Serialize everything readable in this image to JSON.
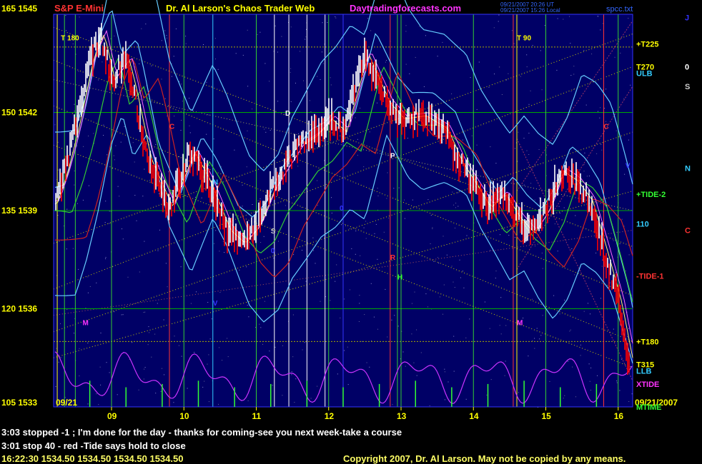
{
  "header": {
    "symbol": "S&P E-Mini",
    "title": "Dr. Al Larson's Chaos Trader Web",
    "site": "Daytradingforecasts.com",
    "stamp1": "09/21/2007 20:26 UT",
    "stamp2": "09/21/2007 15:26 Local",
    "file": "spcc.txt"
  },
  "colors": {
    "background": "#000000",
    "plot_bg": "#000066",
    "price_up": "#ffffff",
    "price_down": "#ff0000",
    "grid_green": "#00cc00",
    "accent_yellow": "#ffff00",
    "magenta": "#ff33ff",
    "cyan": "#33ccff"
  },
  "chart_data": {
    "type": "line",
    "title": "S&P E-Mini",
    "x_ticks": [
      "09",
      "10",
      "11",
      "12",
      "13",
      "14",
      "15",
      "16"
    ],
    "y_ticks": [
      {
        "label": "165 1545",
        "price": 1545
      },
      {
        "label": "150 1542",
        "price": 1542
      },
      {
        "label": "135 1539",
        "price": 1539
      },
      {
        "label": "120 1536",
        "price": 1536
      },
      {
        "label": "105 1533",
        "price": 1533
      }
    ],
    "ylim": [
      1533,
      1545
    ],
    "xlim": [
      8.2,
      16.2
    ],
    "date_start": "09/21",
    "date_end": "09/21/2007",
    "price_series": [
      {
        "x": 8.2,
        "y": 1539.2
      },
      {
        "x": 8.35,
        "y": 1540.2
      },
      {
        "x": 8.5,
        "y": 1541.5
      },
      {
        "x": 8.7,
        "y": 1543.6
      },
      {
        "x": 8.85,
        "y": 1544.4
      },
      {
        "x": 9.0,
        "y": 1543.0
      },
      {
        "x": 9.2,
        "y": 1543.6
      },
      {
        "x": 9.3,
        "y": 1542.7
      },
      {
        "x": 9.5,
        "y": 1540.6
      },
      {
        "x": 9.8,
        "y": 1539.1
      },
      {
        "x": 10.1,
        "y": 1540.8
      },
      {
        "x": 10.3,
        "y": 1540.0
      },
      {
        "x": 10.6,
        "y": 1538.4
      },
      {
        "x": 10.8,
        "y": 1538.0
      },
      {
        "x": 11.0,
        "y": 1538.5
      },
      {
        "x": 11.2,
        "y": 1539.6
      },
      {
        "x": 11.4,
        "y": 1540.3
      },
      {
        "x": 11.6,
        "y": 1541.0
      },
      {
        "x": 11.8,
        "y": 1541.3
      },
      {
        "x": 12.0,
        "y": 1541.8
      },
      {
        "x": 12.2,
        "y": 1541.4
      },
      {
        "x": 12.5,
        "y": 1543.8
      },
      {
        "x": 12.8,
        "y": 1542.3
      },
      {
        "x": 13.0,
        "y": 1541.8
      },
      {
        "x": 13.3,
        "y": 1541.9
      },
      {
        "x": 13.6,
        "y": 1541.5
      },
      {
        "x": 13.8,
        "y": 1540.5
      },
      {
        "x": 14.0,
        "y": 1539.8
      },
      {
        "x": 14.2,
        "y": 1539.1
      },
      {
        "x": 14.4,
        "y": 1539.5
      },
      {
        "x": 14.6,
        "y": 1538.8
      },
      {
        "x": 14.8,
        "y": 1538.3
      },
      {
        "x": 15.0,
        "y": 1539.0
      },
      {
        "x": 15.2,
        "y": 1540.2
      },
      {
        "x": 15.4,
        "y": 1539.9
      },
      {
        "x": 15.6,
        "y": 1539.3
      },
      {
        "x": 15.8,
        "y": 1537.8
      },
      {
        "x": 16.0,
        "y": 1536.2
      },
      {
        "x": 16.15,
        "y": 1534.5
      }
    ],
    "right_labels": [
      {
        "text": "+T225",
        "price": 1544.1,
        "color": "#ffff00"
      },
      {
        "text": "T270",
        "price": 1543.4,
        "color": "#ffff00"
      },
      {
        "text": "ULB",
        "price": 1543.2,
        "color": "#33ccff"
      },
      {
        "text": "+TIDE-2",
        "price": 1539.5,
        "color": "#33ff33"
      },
      {
        "text": "110",
        "price": 1538.6,
        "color": "#33ccff"
      },
      {
        "text": "-TIDE-1",
        "price": 1537.0,
        "color": "#ff3333"
      },
      {
        "text": "+T180",
        "price": 1535.0,
        "color": "#ffff00"
      },
      {
        "text": "T315",
        "price": 1534.3,
        "color": "#ffff00"
      },
      {
        "text": "LLB",
        "price": 1534.1,
        "color": "#33ccff"
      },
      {
        "text": "XTIDE",
        "price": 1533.7,
        "color": "#ff33ff"
      },
      {
        "text": "MTIME",
        "price": 1533.0,
        "color": "#33ff33"
      }
    ],
    "far_right_labels": [
      {
        "text": "J",
        "price": 1544.9,
        "color": "#3333ff"
      },
      {
        "text": "0",
        "price": 1543.4,
        "color": "#ffffff"
      },
      {
        "text": "S",
        "price": 1542.8,
        "color": "#cccccc"
      },
      {
        "text": "N",
        "price": 1540.3,
        "color": "#33ccff"
      },
      {
        "text": "C",
        "price": 1538.4,
        "color": "#ff3333"
      }
    ],
    "in_chart_labels": [
      {
        "text": "T 180",
        "x": 8.3,
        "price": 1544.2,
        "color": "#ffff00"
      },
      {
        "text": "T 90",
        "x": 14.6,
        "price": 1544.2,
        "color": "#ffff00"
      },
      {
        "text": "C",
        "x": 9.8,
        "price": 1541.5,
        "color": "#ff3333"
      },
      {
        "text": "C",
        "x": 15.8,
        "price": 1541.5,
        "color": "#ff3333"
      },
      {
        "text": "N",
        "x": 10.4,
        "price": 1539.8,
        "color": "#33ccff"
      },
      {
        "text": "S",
        "x": 11.2,
        "price": 1538.3,
        "color": "#cccccc"
      },
      {
        "text": "D",
        "x": 11.4,
        "price": 1541.9,
        "color": "#ffffff"
      },
      {
        "text": "P",
        "x": 12.85,
        "price": 1540.6,
        "color": "#ffffff"
      },
      {
        "text": "R",
        "x": 12.85,
        "price": 1537.5,
        "color": "#ff3333"
      },
      {
        "text": "H",
        "x": 12.95,
        "price": 1536.9,
        "color": "#33ff33"
      },
      {
        "text": "M",
        "x": 8.6,
        "price": 1535.5,
        "color": "#ff33ff"
      },
      {
        "text": "M",
        "x": 14.6,
        "price": 1535.5,
        "color": "#ff33ff"
      },
      {
        "text": "V",
        "x": 10.4,
        "price": 1536.1,
        "color": "#3333ff"
      },
      {
        "text": "V",
        "x": 16.1,
        "price": 1540.3,
        "color": "#3333ff"
      },
      {
        "text": "0",
        "x": 12.15,
        "price": 1539.0,
        "color": "#3333ff"
      },
      {
        "text": "0",
        "x": 11.2,
        "price": 1537.7,
        "color": "#3333ff"
      }
    ]
  },
  "status": {
    "line1": "3:03 stopped -1 ; I'm done for the day - thanks for coming-see you next week-take a course",
    "line2": "3:01 stop 40 - red -Tide says hold to close",
    "line3": "16:22:30  1534.50 1534.50 1534.50 1534.50",
    "copyright": "Copyright 2007, Dr. Al Larson. May not be copied by any means."
  }
}
